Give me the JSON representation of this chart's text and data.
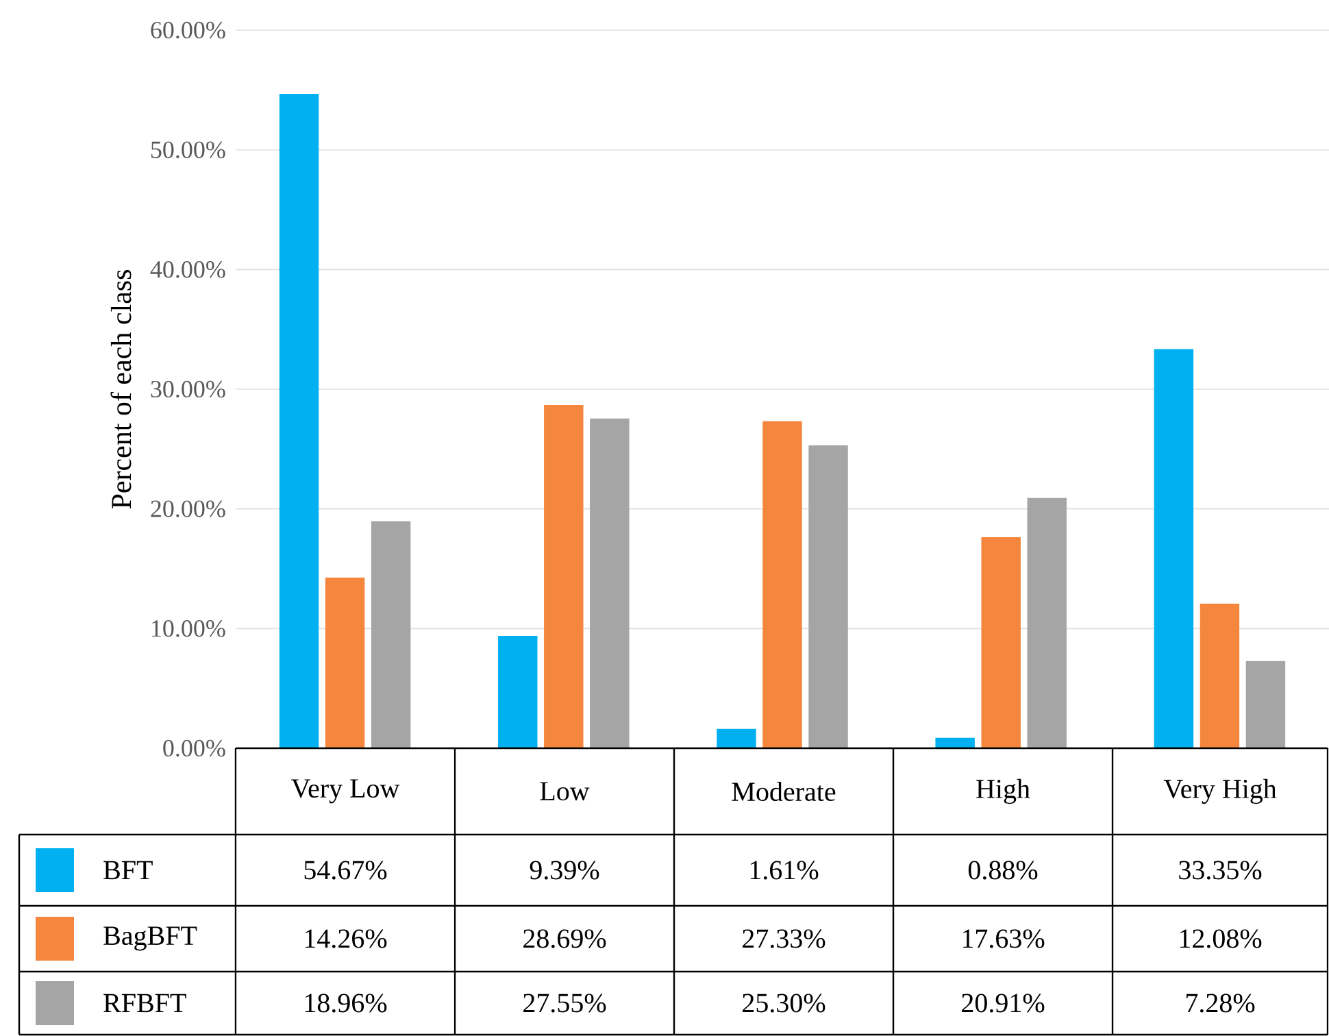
{
  "chart_data": {
    "type": "bar",
    "ylabel": "Percent of each class",
    "categories": [
      "Very Low",
      "Low",
      "Moderate",
      "High",
      "Very High"
    ],
    "series": [
      {
        "name": "BFT",
        "color": "#00b0f0",
        "values": [
          54.67,
          9.39,
          1.61,
          0.88,
          33.35
        ],
        "value_labels": [
          "54.67%",
          "9.39%",
          "1.61%",
          "0.88%",
          "33.35%"
        ]
      },
      {
        "name": "BagBFT",
        "color": "#f4873d",
        "values": [
          14.26,
          28.69,
          27.33,
          17.63,
          12.08
        ],
        "value_labels": [
          "14.26%",
          "28.69%",
          "27.33%",
          "17.63%",
          "12.08%"
        ]
      },
      {
        "name": "RFBFT",
        "color": "#a5a5a5",
        "values": [
          18.96,
          27.55,
          25.3,
          20.91,
          7.28
        ],
        "value_labels": [
          "18.96%",
          "27.55%",
          "25.30%",
          "20.91%",
          "7.28%"
        ]
      }
    ],
    "ylim": [
      0,
      60
    ],
    "yticks": [
      {
        "value": 0,
        "label": "0.00%"
      },
      {
        "value": 10,
        "label": "10.00%"
      },
      {
        "value": 20,
        "label": "20.00%"
      },
      {
        "value": 30,
        "label": "30.00%"
      },
      {
        "value": 40,
        "label": "40.00%"
      },
      {
        "value": 50,
        "label": "50.00%"
      },
      {
        "value": 60,
        "label": "60.00%"
      }
    ],
    "grid": "y",
    "legend": "bottom"
  }
}
